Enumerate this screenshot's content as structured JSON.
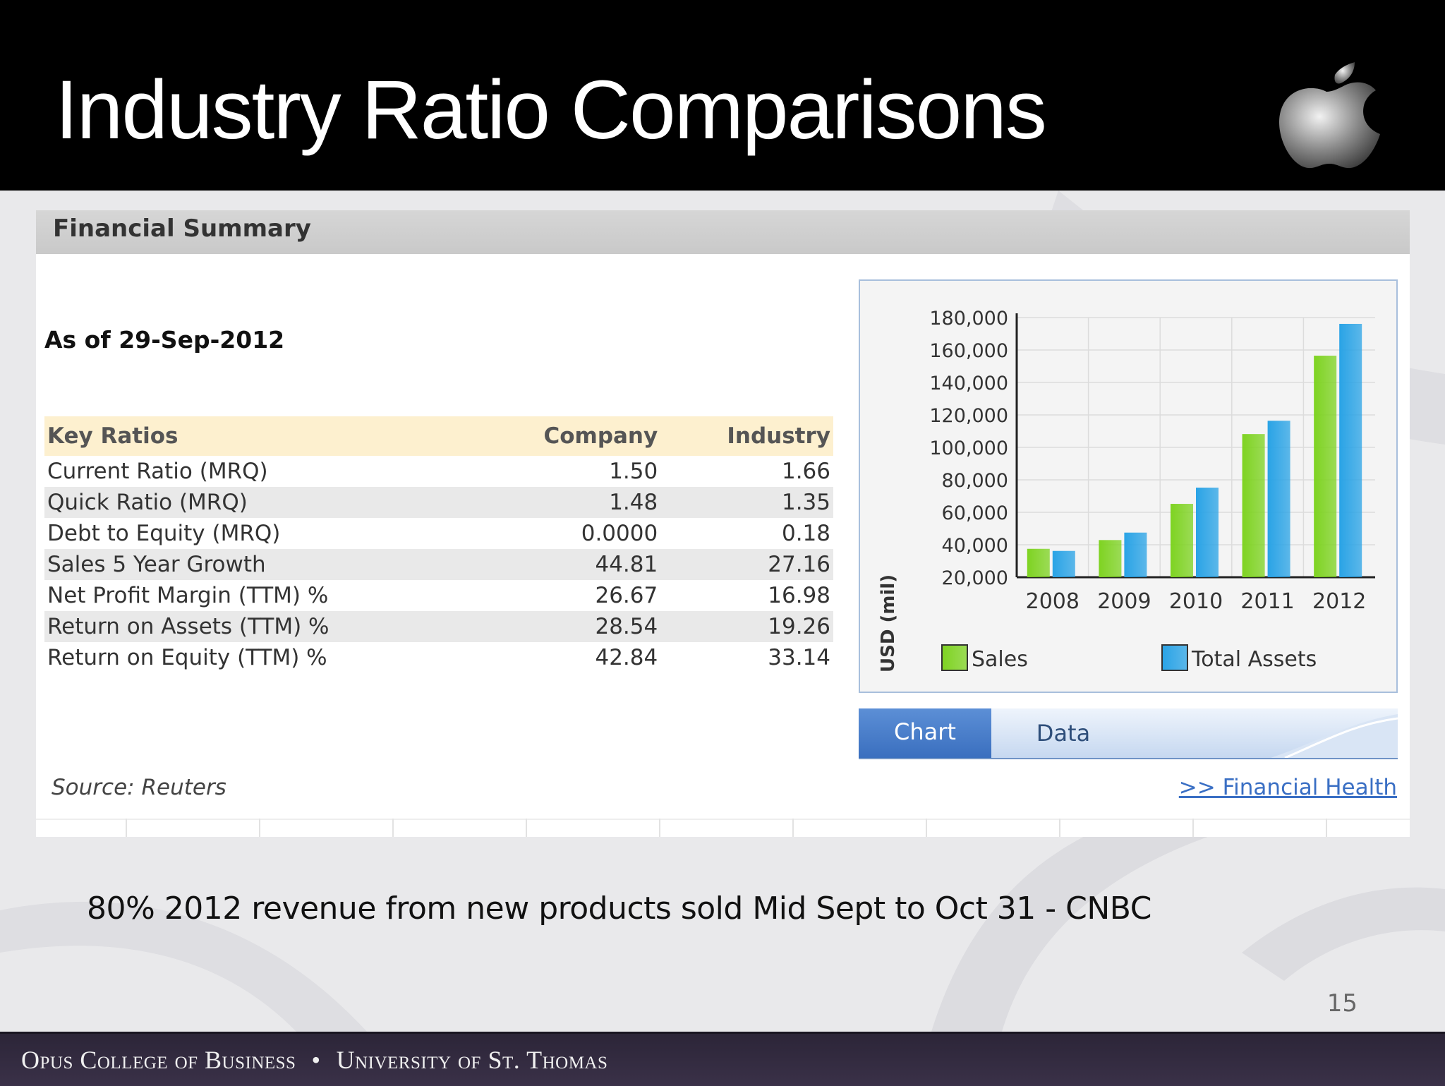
{
  "slide": {
    "title": "Industry Ratio Comparisons",
    "logo_icon": "apple-logo-icon",
    "note": "80% 2012 revenue from new products sold Mid Sept to Oct 31 - CNBC",
    "page_number": "15"
  },
  "panel": {
    "header_title": "Financial Summary",
    "as_of": "As of 29-Sep-2012",
    "table": {
      "headers": [
        "Key Ratios",
        "Company",
        "Industry"
      ],
      "rows": [
        [
          "Current Ratio (MRQ)",
          "1.50",
          "1.66"
        ],
        [
          "Quick Ratio (MRQ)",
          "1.48",
          "1.35"
        ],
        [
          "Debt to Equity (MRQ)",
          "0.0000",
          "0.18"
        ],
        [
          "Sales 5 Year Growth",
          "44.81",
          "27.16"
        ],
        [
          "Net Profit Margin (TTM) %",
          "26.67",
          "16.98"
        ],
        [
          "Return on Assets (TTM) %",
          "28.54",
          "19.26"
        ],
        [
          "Return on Equity (TTM) %",
          "42.84",
          "33.14"
        ]
      ]
    },
    "source": "Source: Reuters",
    "link": ">> Financial Health"
  },
  "tabs": {
    "chart": "Chart",
    "data": "Data"
  },
  "chart_data": {
    "type": "bar",
    "categories": [
      "2008",
      "2009",
      "2010",
      "2011",
      "2012"
    ],
    "series": [
      {
        "name": "Sales",
        "values": [
          37500,
          42900,
          65200,
          108200,
          156500
        ],
        "color": "#7ed321"
      },
      {
        "name": "Total Assets",
        "values": [
          36200,
          47500,
          75200,
          116400,
          176100
        ],
        "color": "#29a3e6"
      }
    ],
    "ylabel": "USD (mil)",
    "ylim": [
      20000,
      180000
    ],
    "yticks": [
      "20,000",
      "40,000",
      "60,000",
      "80,000",
      "100,000",
      "120,000",
      "140,000",
      "160,000",
      "180,000"
    ],
    "grid": true,
    "legend": "bottom"
  },
  "footer": {
    "college": "Opus College of Business",
    "separator": "•",
    "university": "University of St. Thomas"
  }
}
